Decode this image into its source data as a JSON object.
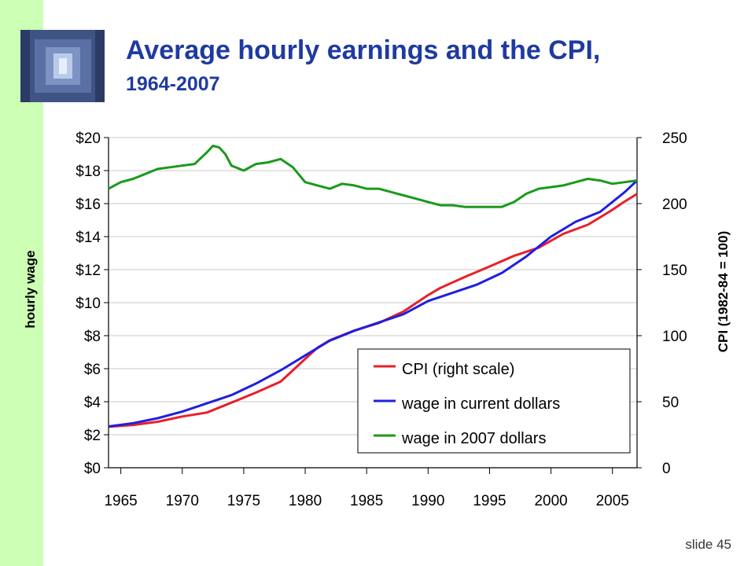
{
  "slide": {
    "title": "Average hourly earnings and the CPI,",
    "subtitle": "1964-2007",
    "footer": "slide 45"
  },
  "chart_data": {
    "type": "line",
    "xlim": [
      1964,
      2007
    ],
    "x_ticks": [
      "1965",
      "1970",
      "1975",
      "1980",
      "1985",
      "1990",
      "1995",
      "2000",
      "2005"
    ],
    "y_left": {
      "label": "hourly wage",
      "ylim": [
        0,
        20
      ],
      "ticks": [
        "$0",
        "$2",
        "$4",
        "$6",
        "$8",
        "$10",
        "$12",
        "$14",
        "$16",
        "$18",
        "$20"
      ]
    },
    "y_right": {
      "label": "CPI  (1982-84 = 100)",
      "ylim": [
        0,
        250
      ],
      "ticks": [
        "0",
        "50",
        "100",
        "150",
        "200",
        "250"
      ]
    },
    "grid": true,
    "legend_position": "lower-right",
    "series": [
      {
        "name": "CPI (right scale)",
        "color": "#e8202a",
        "axis": "right",
        "x": [
          1964,
          1966,
          1968,
          1970,
          1972,
          1974,
          1976,
          1978,
          1980,
          1981,
          1982,
          1984,
          1986,
          1988,
          1990,
          1991,
          1993,
          1995,
          1997,
          1999,
          2001,
          2003,
          2005,
          2006,
          2007
        ],
        "y": [
          31.0,
          32.4,
          34.8,
          38.8,
          41.8,
          49.3,
          56.9,
          65.2,
          82.4,
          90.9,
          96.5,
          103.9,
          109.6,
          118.3,
          130.7,
          136.2,
          144.5,
          152.4,
          160.5,
          166.6,
          177.1,
          184.0,
          195.3,
          201.6,
          207.3
        ]
      },
      {
        "name": "wage in current dollars",
        "color": "#1f1fe0",
        "axis": "left",
        "x": [
          1964,
          1966,
          1968,
          1970,
          1972,
          1974,
          1976,
          1978,
          1980,
          1982,
          1984,
          1986,
          1988,
          1990,
          1992,
          1994,
          1996,
          1998,
          2000,
          2002,
          2004,
          2006,
          2007
        ],
        "y": [
          2.5,
          2.7,
          3.0,
          3.4,
          3.9,
          4.4,
          5.1,
          5.9,
          6.8,
          7.7,
          8.3,
          8.8,
          9.3,
          10.1,
          10.6,
          11.1,
          11.8,
          12.8,
          14.0,
          14.9,
          15.5,
          16.7,
          17.4
        ]
      },
      {
        "name": "wage in 2007 dollars",
        "color": "#1a9a1a",
        "axis": "left",
        "x": [
          1964,
          1965,
          1966,
          1967,
          1968,
          1969,
          1970,
          1971,
          1972,
          1972.5,
          1973,
          1973.5,
          1974,
          1975,
          1976,
          1977,
          1978,
          1979,
          1980,
          1981,
          1982,
          1983,
          1984,
          1985,
          1986,
          1987,
          1988,
          1989,
          1990,
          1991,
          1992,
          1993,
          1994,
          1995,
          1996,
          1997,
          1998,
          1999,
          2000,
          2001,
          2002,
          2003,
          2004,
          2005,
          2006,
          2007
        ],
        "y": [
          16.9,
          17.3,
          17.5,
          17.8,
          18.1,
          18.2,
          18.3,
          18.4,
          19.1,
          19.5,
          19.4,
          19.0,
          18.3,
          18.0,
          18.4,
          18.5,
          18.7,
          18.2,
          17.3,
          17.1,
          16.9,
          17.2,
          17.1,
          16.9,
          16.9,
          16.7,
          16.5,
          16.3,
          16.1,
          15.9,
          15.9,
          15.8,
          15.8,
          15.8,
          15.8,
          16.1,
          16.6,
          16.9,
          17.0,
          17.1,
          17.3,
          17.5,
          17.4,
          17.2,
          17.3,
          17.4
        ]
      }
    ]
  }
}
